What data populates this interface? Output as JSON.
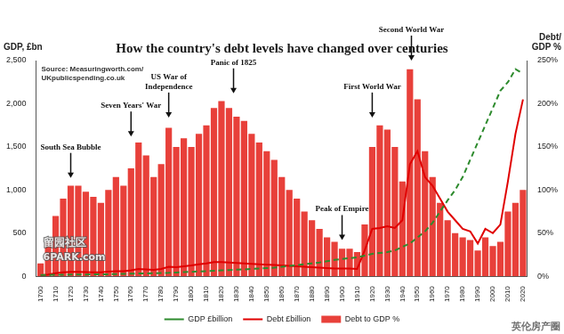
{
  "chart_data": {
    "type": "bar",
    "title": "How the country's debt levels have changed over centuries",
    "source": "Source: Measuringworth.com/\nUKpublicspending.co.uk",
    "y_label": "GDP, £bn",
    "y2_label": "Debt/\nGDP %",
    "watermarks": [
      "留园社区",
      "6PARK.com",
      "英伦房产圈"
    ],
    "annotations": [
      {
        "text": "South Sea Bubble",
        "x": 1720,
        "y": 112,
        "axis": "y2"
      },
      {
        "text": "Seven Years' War",
        "x": 1760,
        "y": 160,
        "axis": "y2"
      },
      {
        "text": "US War of\nIndependence",
        "x": 1785,
        "y": 182,
        "axis": "y2"
      },
      {
        "text": "Panic of 1825",
        "x": 1828,
        "y": 210,
        "axis": "y2"
      },
      {
        "text": "Peak of Empire",
        "x": 1900,
        "y": 40,
        "axis": "y2"
      },
      {
        "text": "First World War",
        "x": 1920,
        "y": 182,
        "axis": "y2"
      },
      {
        "text": "Second World War",
        "x": 1946,
        "y": 248,
        "axis": "y2"
      }
    ],
    "x": [
      1700,
      1705,
      1710,
      1715,
      1720,
      1725,
      1730,
      1735,
      1740,
      1745,
      1750,
      1755,
      1760,
      1765,
      1770,
      1775,
      1780,
      1785,
      1790,
      1795,
      1800,
      1805,
      1810,
      1815,
      1820,
      1825,
      1830,
      1835,
      1840,
      1845,
      1850,
      1855,
      1860,
      1865,
      1870,
      1875,
      1880,
      1885,
      1890,
      1895,
      1900,
      1905,
      1910,
      1915,
      1920,
      1925,
      1930,
      1935,
      1940,
      1945,
      1950,
      1955,
      1960,
      1965,
      1970,
      1975,
      1980,
      1985,
      1990,
      1995,
      2000,
      2005,
      2010,
      2015,
      2020
    ],
    "series": [
      {
        "name": "Debt to GDP %",
        "type": "bar",
        "axis": "y2",
        "color": "#e8403a",
        "values": [
          15,
          40,
          70,
          90,
          105,
          105,
          98,
          92,
          85,
          100,
          115,
          105,
          125,
          155,
          140,
          115,
          130,
          172,
          150,
          160,
          150,
          165,
          175,
          195,
          203,
          195,
          185,
          180,
          165,
          155,
          145,
          135,
          115,
          100,
          90,
          75,
          65,
          55,
          45,
          40,
          32,
          32,
          28,
          60,
          150,
          175,
          170,
          150,
          110,
          240,
          205,
          145,
          115,
          85,
          65,
          50,
          45,
          42,
          30,
          45,
          35,
          40,
          75,
          85,
          100
        ]
      },
      {
        "name": "GDP £billion",
        "type": "line",
        "line_style": "dashed",
        "color": "#2e8b2e",
        "values": [
          15,
          16,
          17,
          18,
          19,
          20,
          21,
          22,
          23,
          24,
          26,
          28,
          30,
          32,
          34,
          36,
          38,
          40,
          44,
          48,
          52,
          56,
          60,
          64,
          68,
          72,
          76,
          80,
          85,
          90,
          95,
          100,
          110,
          120,
          130,
          140,
          150,
          160,
          175,
          190,
          200,
          210,
          220,
          240,
          260,
          270,
          280,
          300,
          340,
          380,
          450,
          520,
          620,
          750,
          880,
          1000,
          1150,
          1350,
          1550,
          1750,
          1950,
          2150,
          2250,
          2400,
          2350
        ]
      },
      {
        "name": "Debt £billion",
        "type": "line",
        "line_style": "solid",
        "color": "#e00000",
        "values": [
          10,
          20,
          35,
          45,
          50,
          50,
          48,
          46,
          45,
          55,
          60,
          58,
          70,
          85,
          80,
          75,
          85,
          110,
          105,
          115,
          125,
          140,
          150,
          165,
          165,
          160,
          155,
          150,
          145,
          140,
          135,
          130,
          125,
          120,
          115,
          110,
          105,
          100,
          95,
          90,
          90,
          90,
          85,
          300,
          550,
          560,
          580,
          560,
          650,
          1300,
          1450,
          1150,
          1050,
          900,
          750,
          650,
          550,
          520,
          380,
          550,
          500,
          600,
          1100,
          1650,
          2050
        ]
      }
    ],
    "xlim": [
      1697,
      2023
    ],
    "xticks": [
      1700,
      1710,
      1720,
      1730,
      1740,
      1750,
      1760,
      1770,
      1780,
      1790,
      1800,
      1810,
      1820,
      1830,
      1840,
      1850,
      1860,
      1870,
      1880,
      1890,
      1900,
      1910,
      1920,
      1930,
      1940,
      1950,
      1960,
      1970,
      1980,
      1990,
      2000,
      2010,
      2020
    ],
    "ylim": [
      0,
      2500
    ],
    "yticks": [
      0,
      500,
      {
        "value": 1000,
        "label": "1,000"
      },
      {
        "value": 1500,
        "label": "1,500"
      },
      {
        "value": 2000,
        "label": "2,000"
      },
      {
        "value": 2500,
        "label": "2,500"
      }
    ],
    "y2lim": [
      0,
      250
    ],
    "y2ticks": [
      {
        "value": 0,
        "label": "0%"
      },
      {
        "value": 50,
        "label": "50%"
      },
      {
        "value": 100,
        "label": "100%"
      },
      {
        "value": 150,
        "label": "150%"
      },
      {
        "value": 200,
        "label": "200%"
      },
      {
        "value": 250,
        "label": "250%"
      }
    ],
    "grid": false,
    "legend": "bottom"
  }
}
